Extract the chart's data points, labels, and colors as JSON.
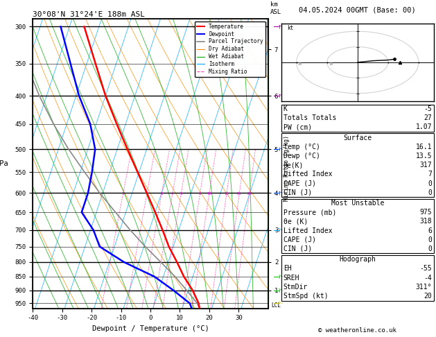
{
  "title_left": "30°08'N 31°24'E 188m ASL",
  "title_right": "04.05.2024 00GMT (Base: 00)",
  "xlabel": "Dewpoint / Temperature (°C)",
  "pressure_levels": [
    300,
    350,
    400,
    450,
    500,
    550,
    600,
    650,
    700,
    750,
    800,
    850,
    900,
    950
  ],
  "pressure_major": [
    300,
    400,
    500,
    600,
    700,
    800,
    900
  ],
  "x_ticks": [
    -40,
    -30,
    -20,
    -10,
    0,
    10,
    20,
    30
  ],
  "xlim": [
    -40,
    40
  ],
  "pmin": 290,
  "pmax": 970,
  "temp_profile_p": [
    975,
    950,
    900,
    850,
    800,
    750,
    700,
    650,
    600,
    550,
    500,
    450,
    400,
    350,
    300
  ],
  "temp_profile_t": [
    16.1,
    15.0,
    11.5,
    7.0,
    3.0,
    -1.5,
    -5.5,
    -10.0,
    -15.0,
    -20.5,
    -26.5,
    -33.0,
    -40.0,
    -47.0,
    -55.0
  ],
  "dewp_profile_p": [
    975,
    950,
    900,
    850,
    800,
    750,
    700,
    650,
    600,
    550,
    500,
    450,
    400,
    350,
    300
  ],
  "dewp_profile_t": [
    13.5,
    12.0,
    5.0,
    -3.0,
    -15.0,
    -25.0,
    -29.0,
    -35.0,
    -35.0,
    -36.0,
    -37.5,
    -42.0,
    -49.0,
    -55.5,
    -63.0
  ],
  "parcel_profile_p": [
    975,
    950,
    900,
    850,
    800,
    750,
    700,
    650,
    600,
    550,
    500,
    450,
    400,
    350,
    300
  ],
  "parcel_profile_t": [
    16.1,
    14.5,
    9.5,
    4.0,
    -2.5,
    -9.5,
    -16.5,
    -23.5,
    -31.0,
    -38.5,
    -46.5,
    -54.5,
    -62.5,
    -70.5,
    -78.5
  ],
  "skew_factor": 27,
  "mixing_ratios": [
    1,
    2,
    3,
    4,
    5,
    8,
    10,
    15,
    20,
    25
  ],
  "bg_color": "#ffffff",
  "temp_color": "#ff0000",
  "dewp_color": "#0000ff",
  "parcel_color": "#888888",
  "dry_adiabat_color": "#ff8c00",
  "wet_adiabat_color": "#00aa00",
  "isotherm_color": "#00aaff",
  "mixing_ratio_color": "#ff44aa",
  "lcl_pressure": 958,
  "copyright": "© weatheronline.co.uk",
  "km_map": {
    "1": 900,
    "2": 800,
    "3": 700,
    "4": 600,
    "5": 500,
    "6": 400,
    "7": 330,
    "8": 280
  },
  "wind_colors_p": [
    300,
    400,
    500,
    600,
    700,
    850,
    900,
    950
  ],
  "wind_colors": [
    "#aa00aa",
    "#aa00aa",
    "#0055ff",
    "#0055ff",
    "#00aaff",
    "#00cc00",
    "#00cc00",
    "#cccc00"
  ],
  "table_rows_kpw": [
    [
      "K",
      "-5"
    ],
    [
      "Totals Totals",
      "27"
    ],
    [
      "PW (cm)",
      "1.07"
    ]
  ],
  "table_rows_surface": [
    [
      "Temp (°C)",
      "16.1"
    ],
    [
      "Dewp (°C)",
      "13.5"
    ],
    [
      "θe(K)",
      "317"
    ],
    [
      "Lifted Index",
      "7"
    ],
    [
      "CAPE (J)",
      "0"
    ],
    [
      "CIN (J)",
      "0"
    ]
  ],
  "table_rows_mu": [
    [
      "Pressure (mb)",
      "975"
    ],
    [
      "θe (K)",
      "318"
    ],
    [
      "Lifted Index",
      "6"
    ],
    [
      "CAPE (J)",
      "0"
    ],
    [
      "CIN (J)",
      "0"
    ]
  ],
  "table_rows_hodo": [
    [
      "EH",
      "-55"
    ],
    [
      "SREH",
      "-4"
    ],
    [
      "StmDir",
      "311°"
    ],
    [
      "StmSpd (kt)",
      "20"
    ]
  ]
}
